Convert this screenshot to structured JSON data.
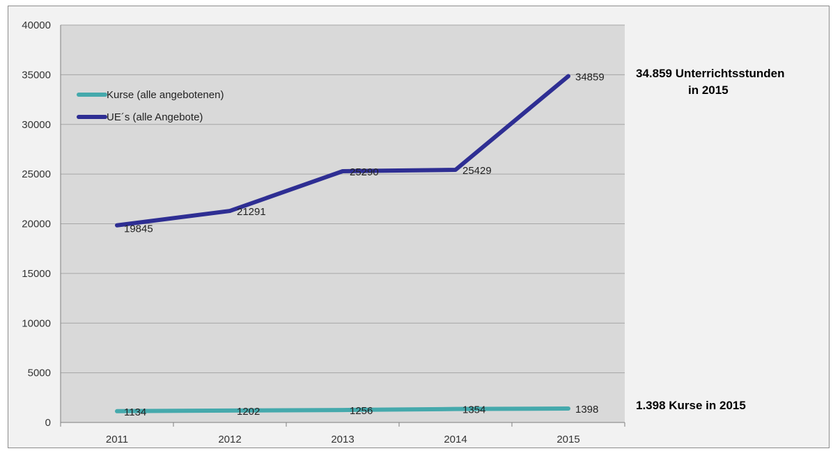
{
  "colors": {
    "kurse": "#45a9ac",
    "ue": "#2e2e93",
    "plot_bg": "#d9d9d9",
    "frame_bg": "#f2f2f2",
    "grid": "#a6a6a6"
  },
  "chart_data": {
    "type": "line",
    "categories": [
      "2011",
      "2012",
      "2013",
      "2014",
      "2015"
    ],
    "ylim": [
      0,
      40000
    ],
    "y_ticks": [
      "0",
      "5000",
      "10000",
      "15000",
      "20000",
      "25000",
      "30000",
      "35000",
      "40000"
    ],
    "grid": true,
    "legend_position": "top-left",
    "title": "",
    "xlabel": "",
    "ylabel": "",
    "series": [
      {
        "name": "Kurse (alle angebotenen)",
        "values": [
          1134,
          1202,
          1256,
          1354,
          1398
        ],
        "labels": [
          "1134",
          "1202",
          "1256",
          "1354",
          "1398"
        ]
      },
      {
        "name": "UE´s (alle Angebote)",
        "values": [
          19845,
          21291,
          25290,
          25429,
          34859
        ],
        "labels": [
          "19845",
          "21291",
          "25290",
          "25429",
          "34859"
        ]
      }
    ]
  },
  "annotations": {
    "top_line1": "34.859 Unterrichtsstunden",
    "top_line2": "in 2015",
    "bottom": "1.398 Kurse in 2015"
  }
}
